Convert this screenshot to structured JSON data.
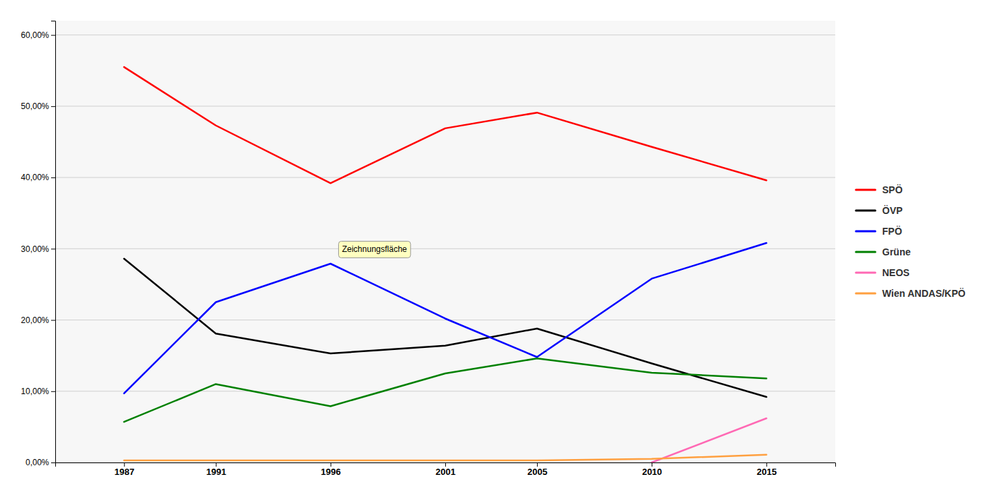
{
  "chart_data": {
    "type": "line",
    "x": [
      1987,
      1991,
      1996,
      2001,
      2005,
      2010,
      2015
    ],
    "series": [
      {
        "name": "SPÖ",
        "color": "#ff0000",
        "values": [
          55.5,
          47.3,
          39.2,
          46.9,
          49.1,
          44.3,
          39.6
        ]
      },
      {
        "name": "ÖVP",
        "color": "#000000",
        "values": [
          28.6,
          18.1,
          15.3,
          16.4,
          18.8,
          13.9,
          9.2
        ]
      },
      {
        "name": "FPÖ",
        "color": "#0000ff",
        "values": [
          9.7,
          22.5,
          27.9,
          20.2,
          14.8,
          25.8,
          30.8
        ]
      },
      {
        "name": "Grüne",
        "color": "#008000",
        "values": [
          5.7,
          11.0,
          7.9,
          12.5,
          14.6,
          12.6,
          11.8
        ]
      },
      {
        "name": "NEOS",
        "color": "#ff69b4",
        "values": [
          null,
          null,
          null,
          null,
          null,
          0.0,
          6.2
        ]
      },
      {
        "name": "Wien ANDAS/KPÖ",
        "color": "#ffa040",
        "values": [
          0.3,
          0.3,
          0.3,
          0.3,
          0.3,
          0.5,
          1.1
        ]
      }
    ],
    "xlim": [
      1984,
      2018
    ],
    "xticks": [
      1987,
      1991,
      1996,
      2001,
      2005,
      2010,
      2015
    ],
    "ylim": [
      0.0,
      62.0
    ],
    "yticks": [
      {
        "value": 0.0,
        "label": "0,00%"
      },
      {
        "value": 10.0,
        "label": "10,00%"
      },
      {
        "value": 20.0,
        "label": "20,00%"
      },
      {
        "value": 30.0,
        "label": "30,00%"
      },
      {
        "value": 40.0,
        "label": "40,00%"
      },
      {
        "value": 50.0,
        "label": "50,00%"
      },
      {
        "value": 60.0,
        "label": "60,00%"
      }
    ],
    "grid": true,
    "legend": "right",
    "annotations": [
      {
        "text": "Zeichnungsfläche",
        "x": 1996.5,
        "y": 29.5
      }
    ]
  }
}
